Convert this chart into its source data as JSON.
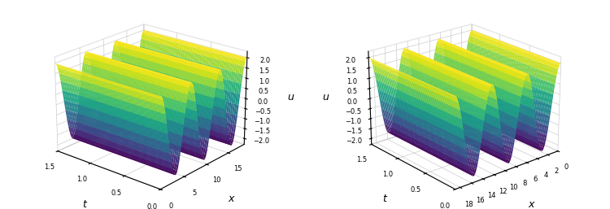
{
  "x_min": 0,
  "x_max": 18.84955592,
  "t_min": 0,
  "t_max": 1.5,
  "nx": 150,
  "nt": 60,
  "amplitude": 2.0,
  "colormap": "viridis",
  "xlabel": "x",
  "tlabel": "t",
  "ulabel": "u",
  "u_ticks": [
    -2,
    -1.5,
    -1,
    -0.5,
    0,
    0.5,
    1,
    1.5,
    2
  ],
  "elev1": 22,
  "azim1": -50,
  "elev2": 22,
  "azim2": 230,
  "fig_width": 7.5,
  "fig_height": 2.57,
  "rcount": 100,
  "ccount": 100,
  "alpha_decay": 0.3
}
